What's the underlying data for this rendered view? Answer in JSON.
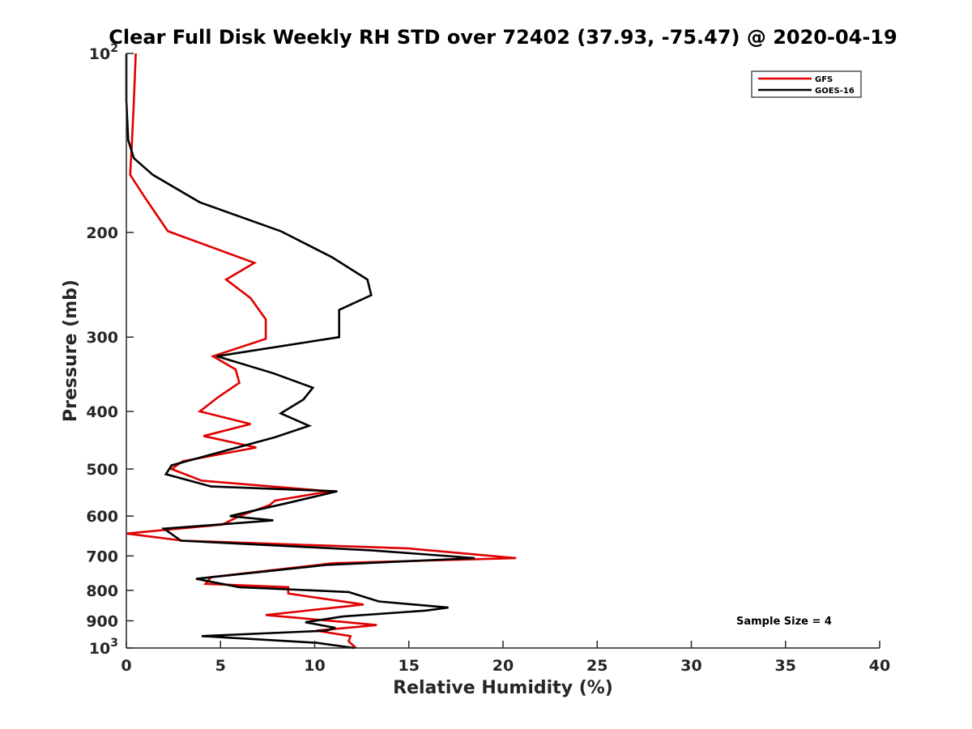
{
  "chart_data": {
    "type": "line",
    "title": "Clear Full Disk Weekly RH STD over 72402 (37.93, -75.47) @ 2020-04-19",
    "xlabel": "Relative Humidity (%)",
    "ylabel": "Pressure (mb)",
    "xlim": [
      0,
      40
    ],
    "ylim": [
      100,
      1000
    ],
    "yscale": "log",
    "y_reversed": true,
    "grid": false,
    "x_ticks": [
      "0",
      "5",
      "10",
      "15",
      "20",
      "25",
      "30",
      "35",
      "40"
    ],
    "y_ticks": [
      {
        "value": 100,
        "label": "10",
        "sup": "2"
      },
      {
        "value": 200,
        "label": "200",
        "sup": ""
      },
      {
        "value": 300,
        "label": "300",
        "sup": ""
      },
      {
        "value": 400,
        "label": "400",
        "sup": ""
      },
      {
        "value": 500,
        "label": "500",
        "sup": ""
      },
      {
        "value": 600,
        "label": "600",
        "sup": ""
      },
      {
        "value": 700,
        "label": "700",
        "sup": ""
      },
      {
        "value": 800,
        "label": "800",
        "sup": ""
      },
      {
        "value": 900,
        "label": "900",
        "sup": ""
      },
      {
        "value": 1000,
        "label": "10",
        "sup": "3"
      }
    ],
    "legend": {
      "position": "top-right"
    },
    "annotation": "Sample Size = 4",
    "series": [
      {
        "name": "GFS",
        "color": "#e00000",
        "points": [
          [
            0.5,
            100
          ],
          [
            0.4,
            120
          ],
          [
            0.3,
            140
          ],
          [
            0.2,
            160
          ],
          [
            1.0,
            175
          ],
          [
            2.2,
            199
          ],
          [
            6.8,
            225
          ],
          [
            5.3,
            240
          ],
          [
            6.6,
            258
          ],
          [
            7.4,
            280
          ],
          [
            7.4,
            302
          ],
          [
            4.6,
            323
          ],
          [
            5.8,
            340
          ],
          [
            6.0,
            358
          ],
          [
            4.9,
            378
          ],
          [
            3.9,
            400
          ],
          [
            6.6,
            420
          ],
          [
            4.1,
            440
          ],
          [
            6.9,
            460
          ],
          [
            3.0,
            485
          ],
          [
            2.4,
            500
          ],
          [
            4.0,
            523
          ],
          [
            10.8,
            545
          ],
          [
            7.9,
            565
          ],
          [
            7.6,
            575
          ],
          [
            6.0,
            600
          ],
          [
            5.1,
            620
          ],
          [
            0.0,
            642
          ],
          [
            3.0,
            660
          ],
          [
            15.0,
            680
          ],
          [
            20.7,
            706
          ],
          [
            11.0,
            720
          ],
          [
            4.5,
            760
          ],
          [
            4.2,
            780
          ],
          [
            8.6,
            790
          ],
          [
            8.6,
            810
          ],
          [
            12.6,
            845
          ],
          [
            7.4,
            880
          ],
          [
            11.7,
            905
          ],
          [
            13.3,
            915
          ],
          [
            10.1,
            935
          ],
          [
            11.9,
            955
          ],
          [
            11.8,
            975
          ],
          [
            12.2,
            1000
          ]
        ]
      },
      {
        "name": "GOES-16",
        "color": "#000000",
        "points": [
          [
            0.0,
            100
          ],
          [
            0.0,
            120
          ],
          [
            0.1,
            140
          ],
          [
            0.4,
            150
          ],
          [
            1.4,
            160
          ],
          [
            3.9,
            178
          ],
          [
            8.2,
            199
          ],
          [
            10.9,
            220
          ],
          [
            12.8,
            240
          ],
          [
            13.0,
            255
          ],
          [
            11.3,
            270
          ],
          [
            11.3,
            300
          ],
          [
            4.8,
            323
          ],
          [
            7.8,
            345
          ],
          [
            9.9,
            365
          ],
          [
            9.4,
            382
          ],
          [
            8.2,
            403
          ],
          [
            9.7,
            423
          ],
          [
            7.9,
            442
          ],
          [
            2.4,
            493
          ],
          [
            2.1,
            510
          ],
          [
            4.5,
            535
          ],
          [
            11.2,
            545
          ],
          [
            8.6,
            570
          ],
          [
            6.5,
            590
          ],
          [
            5.5,
            600
          ],
          [
            7.8,
            610
          ],
          [
            2.0,
            630
          ],
          [
            2.9,
            660
          ],
          [
            13.0,
            685
          ],
          [
            18.5,
            706
          ],
          [
            10.6,
            725
          ],
          [
            3.7,
            765
          ],
          [
            6.0,
            790
          ],
          [
            11.8,
            805
          ],
          [
            13.4,
            835
          ],
          [
            17.1,
            855
          ],
          [
            15.9,
            865
          ],
          [
            11.5,
            885
          ],
          [
            9.5,
            905
          ],
          [
            11.1,
            925
          ],
          [
            10.6,
            935
          ],
          [
            4.0,
            955
          ],
          [
            10.1,
            980
          ],
          [
            12.1,
            1000
          ]
        ]
      }
    ]
  }
}
